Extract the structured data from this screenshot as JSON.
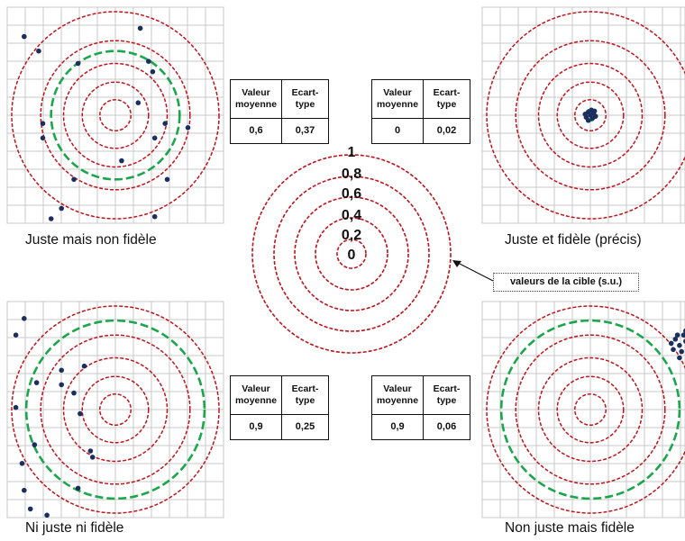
{
  "panels": [
    {
      "id": "tl",
      "caption": "Juste mais non fidèle",
      "green_ring": 0.6,
      "dots": [
        [
          -0.88,
          0.76
        ],
        [
          -0.74,
          0.62
        ],
        [
          0.24,
          0.84
        ],
        [
          0.32,
          0.52
        ],
        [
          0.36,
          0.42
        ],
        [
          0.22,
          0.12
        ],
        [
          0.48,
          -0.08
        ],
        [
          0.7,
          -0.12
        ],
        [
          -0.7,
          -0.08
        ],
        [
          -0.7,
          -0.22
        ],
        [
          0.38,
          -0.22
        ],
        [
          -0.4,
          -0.62
        ],
        [
          0.5,
          -0.62
        ],
        [
          -0.52,
          -0.9
        ],
        [
          -0.62,
          -1.0
        ],
        [
          0.38,
          -0.98
        ],
        [
          0.96,
          -1.16
        ],
        [
          -1.04,
          -1.22
        ],
        [
          -0.36,
          0.5
        ],
        [
          0.06,
          -0.44
        ]
      ]
    },
    {
      "id": "tr",
      "caption": "Juste et fidèle (précis)",
      "green_ring": 0.02,
      "dots": [
        [
          -0.02,
          0.03
        ],
        [
          0.03,
          0.02
        ],
        [
          -0.04,
          -0.02
        ],
        [
          0.02,
          -0.03
        ],
        [
          0.0,
          0.0
        ],
        [
          -0.05,
          0.01
        ],
        [
          0.05,
          -0.01
        ],
        [
          0.01,
          0.05
        ],
        [
          -0.02,
          -0.05
        ],
        [
          0.04,
          0.04
        ]
      ]
    },
    {
      "id": "bl",
      "caption": "Ni juste ni fidèle",
      "green_ring": 0.9,
      "dots": [
        [
          -0.88,
          0.88
        ],
        [
          -0.96,
          0.72
        ],
        [
          -0.52,
          0.38
        ],
        [
          -0.3,
          0.42
        ],
        [
          -0.76,
          0.26
        ],
        [
          -0.52,
          0.24
        ],
        [
          -0.4,
          0.16
        ],
        [
          -1.08,
          0.16
        ],
        [
          -0.96,
          0.02
        ],
        [
          -0.34,
          -0.04
        ],
        [
          -0.24,
          -0.4
        ],
        [
          -0.22,
          -0.46
        ],
        [
          -0.78,
          -0.34
        ],
        [
          -0.9,
          -0.52
        ],
        [
          -0.36,
          -0.76
        ],
        [
          -0.88,
          -0.78
        ],
        [
          -0.82,
          -0.96
        ],
        [
          -0.66,
          -1.02
        ],
        [
          -0.58,
          -1.12
        ],
        [
          -0.94,
          -1.16
        ]
      ]
    },
    {
      "id": "br",
      "caption": "Non juste mais fidèle",
      "green_ring": 0.9,
      "dots": [
        [
          0.82,
          0.68
        ],
        [
          0.86,
          0.62
        ],
        [
          0.92,
          0.66
        ],
        [
          0.8,
          0.58
        ],
        [
          0.88,
          0.56
        ],
        [
          0.95,
          0.6
        ],
        [
          0.84,
          0.72
        ],
        [
          0.9,
          0.72
        ],
        [
          0.78,
          0.64
        ],
        [
          0.96,
          0.52
        ],
        [
          0.86,
          0.5
        ],
        [
          0.92,
          0.76
        ]
      ]
    }
  ],
  "tables": [
    {
      "id": "tl",
      "col1": "Valeur moyenne",
      "col2": "Ecart-type",
      "v1": "0,6",
      "v2": "0,37"
    },
    {
      "id": "tr",
      "col1": "Valeur moyenne",
      "col2": "Ecart-type",
      "v1": "0",
      "v2": "0,02"
    },
    {
      "id": "bl",
      "col1": "Valeur moyenne",
      "col2": "Ecart-type",
      "v1": "0,9",
      "v2": "0,25"
    },
    {
      "id": "br",
      "col1": "Valeur moyenne",
      "col2": "Ecart-type",
      "v1": "0,9",
      "v2": "0,06"
    }
  ],
  "center_target": {
    "ring_values": [
      "0",
      "0,2",
      "0,4",
      "0,6",
      "0,8",
      "1"
    ]
  },
  "callout": {
    "text": "valeurs de la cible (s.u.)"
  },
  "colors": {
    "ring": "#c0141c",
    "green": "#1aa64b",
    "dot": "#1b2f5e",
    "grid": "#c8c8c8"
  }
}
